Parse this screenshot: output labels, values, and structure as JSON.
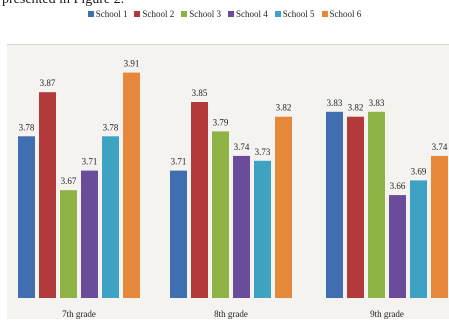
{
  "caption_fragment": "presented in Figure 2.",
  "chart_data": {
    "type": "bar",
    "categories": [
      "7th grade",
      "8th grade",
      "9th grade"
    ],
    "series": [
      {
        "name": "School 1",
        "color": "#3f6fb0",
        "values": [
          3.78,
          3.71,
          3.83
        ]
      },
      {
        "name": "School 2",
        "color": "#b23a3a",
        "values": [
          3.87,
          3.85,
          3.82
        ]
      },
      {
        "name": "School 3",
        "color": "#8fb245",
        "values": [
          3.67,
          3.79,
          3.83
        ]
      },
      {
        "name": "School 4",
        "color": "#6b4c9a",
        "values": [
          3.71,
          3.74,
          3.66
        ]
      },
      {
        "name": "School 5",
        "color": "#3ea3c2",
        "values": [
          3.78,
          3.73,
          3.69
        ]
      },
      {
        "name": "School 6",
        "color": "#e5883a",
        "values": [
          3.91,
          3.82,
          3.74
        ]
      }
    ],
    "value_labels": [
      [
        "3.78",
        "3.87",
        "3.67",
        "3.71",
        "3.78",
        "3.91"
      ],
      [
        "3.71",
        "3.85",
        "3.79",
        "3.74",
        "3.73",
        "3.82"
      ],
      [
        "3.83",
        "3.82",
        "3.83",
        "3.66",
        "3.69",
        "3.74"
      ]
    ],
    "ylim": [
      3.45,
      3.95
    ],
    "legend": "top",
    "grid": false
  }
}
